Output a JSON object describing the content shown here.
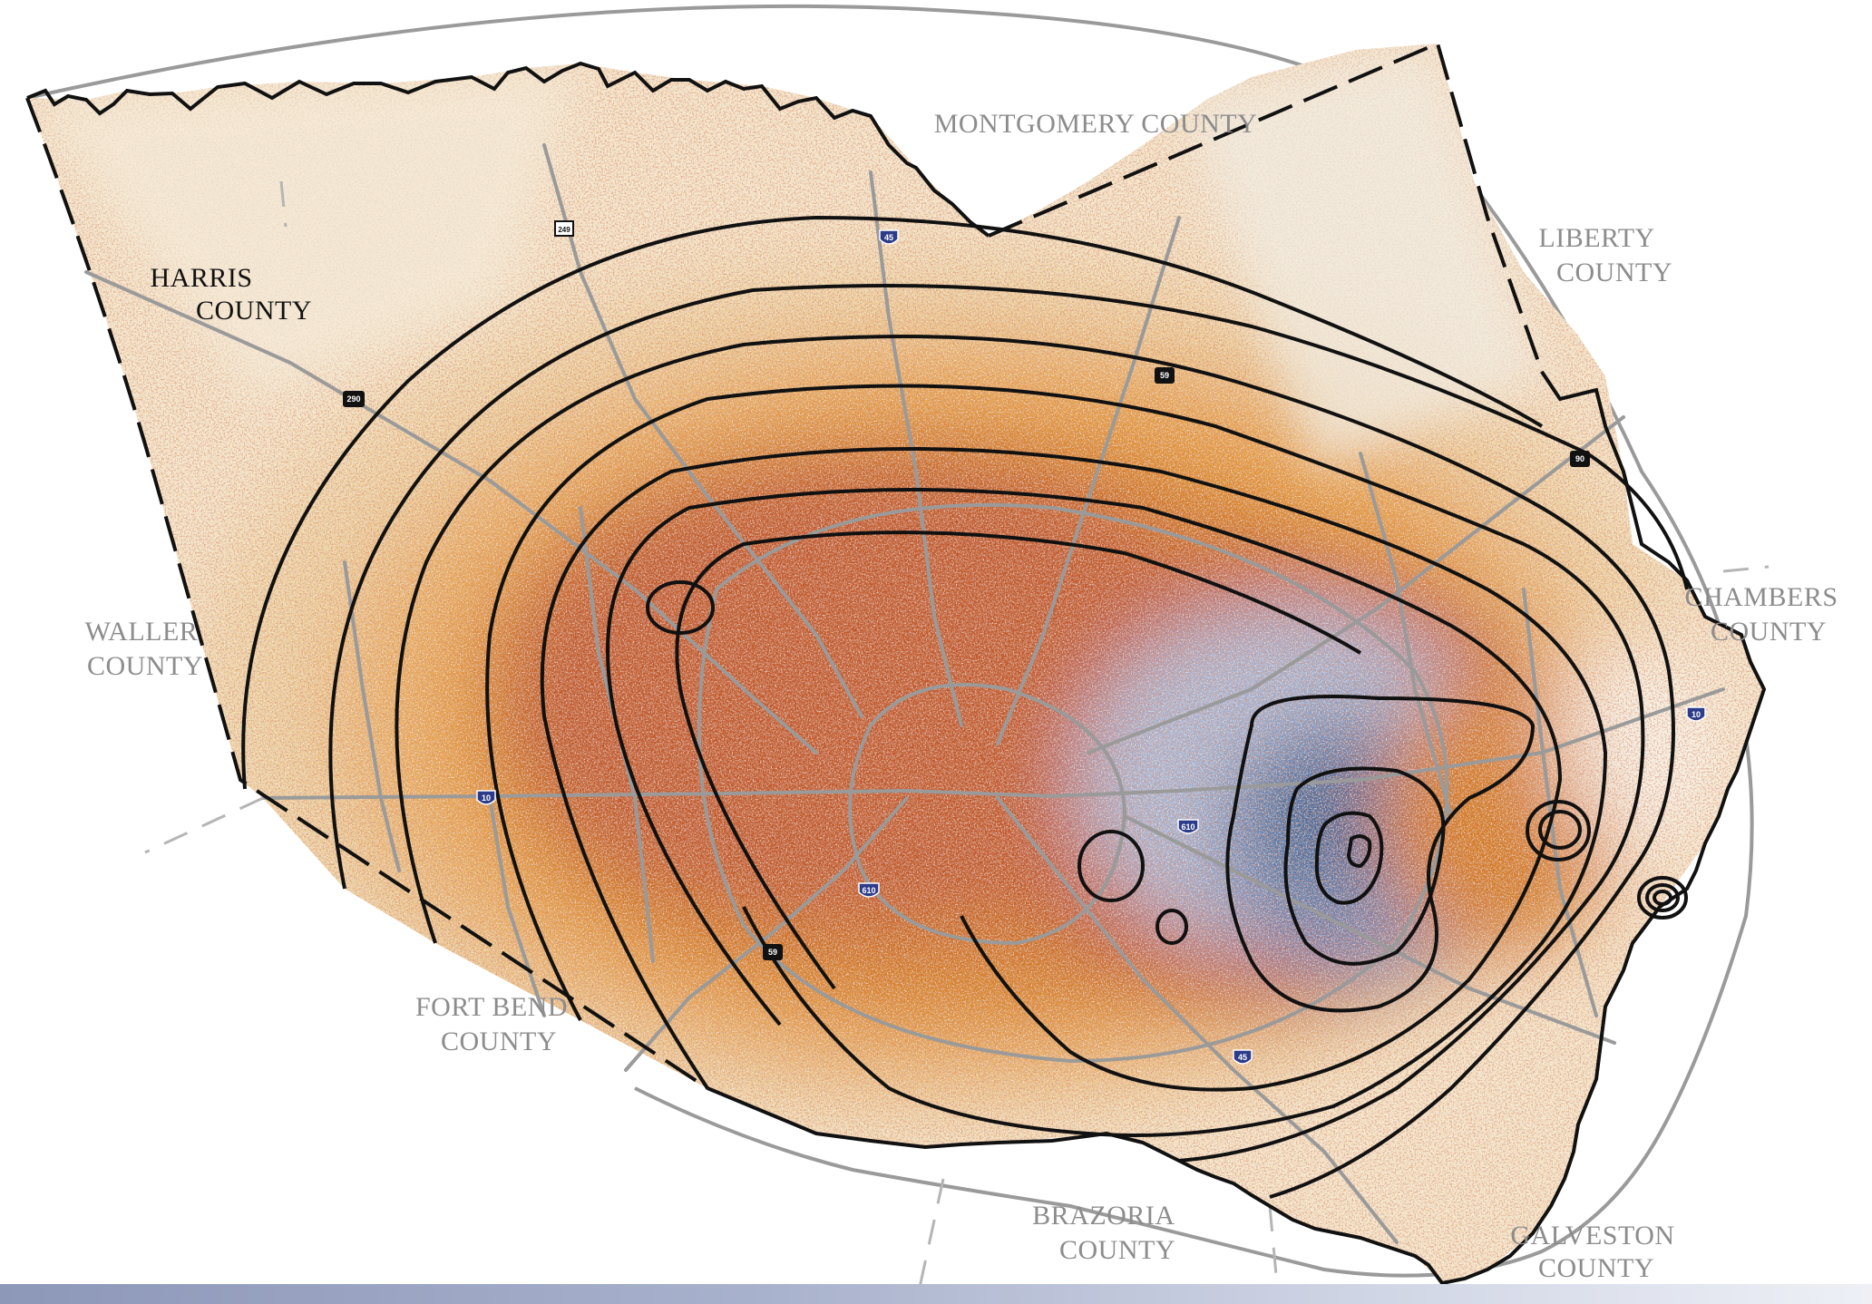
{
  "map": {
    "counties": [
      {
        "id": "harris",
        "name_line1": "HARRIS",
        "name_line2": "COUNTY",
        "style": "dark"
      },
      {
        "id": "montgomery",
        "name_line1": "MONTGOMERY COUNTY",
        "name_line2": "",
        "style": "gray"
      },
      {
        "id": "liberty",
        "name_line1": "LIBERTY",
        "name_line2": "COUNTY",
        "style": "gray"
      },
      {
        "id": "waller",
        "name_line1": "WALLER",
        "name_line2": "COUNTY",
        "style": "gray"
      },
      {
        "id": "chambers",
        "name_line1": "CHAMBERS",
        "name_line2": "COUNTY",
        "style": "gray"
      },
      {
        "id": "fort-bend",
        "name_line1": "FORT BEND",
        "name_line2": "COUNTY",
        "style": "gray"
      },
      {
        "id": "brazoria",
        "name_line1": "BRAZORIA",
        "name_line2": "COUNTY",
        "style": "gray"
      },
      {
        "id": "galveston",
        "name_line1": "GALVESTON",
        "name_line2": "COUNTY",
        "style": "gray"
      }
    ],
    "highway_shields": [
      {
        "label": "249",
        "type": "state-highway"
      },
      {
        "label": "45",
        "type": "interstate"
      },
      {
        "label": "290",
        "type": "us-highway"
      },
      {
        "label": "59",
        "type": "us-highway"
      },
      {
        "label": "90",
        "type": "us-highway"
      },
      {
        "label": "10",
        "type": "interstate"
      },
      {
        "label": "610",
        "type": "interstate"
      },
      {
        "label": "610",
        "type": "interstate"
      },
      {
        "label": "59",
        "type": "us-highway"
      },
      {
        "label": "45",
        "type": "interstate"
      },
      {
        "label": "10",
        "type": "interstate"
      }
    ],
    "colors": {
      "light_fill": "#f6e4c4",
      "pale_fill": "#efd29e",
      "orange": "#e89b35",
      "deep_orange": "#d47a22",
      "rust": "#b3452a",
      "blue_gray": "#a9b6d3",
      "steel_blue": "#3f6596",
      "contour": "#111111",
      "road": "#9a9a9a",
      "outline": "#111111"
    }
  }
}
